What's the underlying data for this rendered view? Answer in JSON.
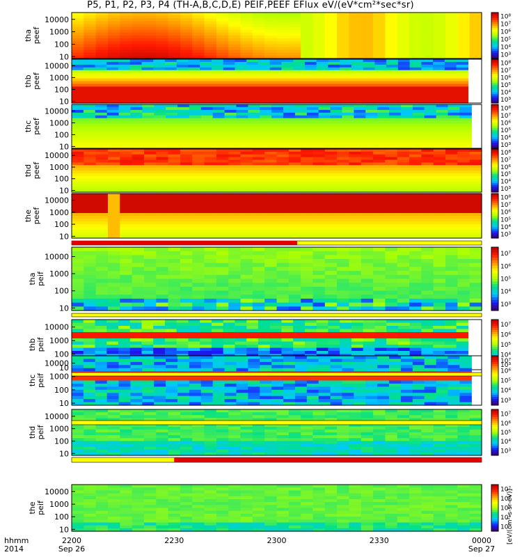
{
  "chart_data": {
    "type": "heatmap",
    "title": "P5, P1, P2, P3, P4 (TH-A,B,C,D,E) PEIF,PEEF EFlux eV/(eV*cm²*sec*sr)",
    "x_axis": {
      "label_rows": [
        "hhmm",
        "2014"
      ],
      "ticks": [
        {
          "t": 0,
          "hhmm": "2200",
          "date": "Sep 26"
        },
        {
          "t": 30,
          "hhmm": "2230",
          "date": ""
        },
        {
          "t": 60,
          "hhmm": "2300",
          "date": ""
        },
        {
          "t": 90,
          "hhmm": "2330",
          "date": ""
        },
        {
          "t": 120,
          "hhmm": "0000",
          "date": "Sep 27"
        }
      ],
      "range_minutes": [
        0,
        120
      ]
    },
    "y_scale": "log",
    "y_ticks": [
      "10",
      "100",
      "1000",
      "10000"
    ],
    "colorbar_unit": "[eV/(cm²-s-sr-eV)]",
    "panels": [
      {
        "ylabel": [
          "tha",
          "peef"
        ],
        "species": "electron",
        "cb_ticks": [
          "10³",
          "10⁴",
          "10⁵",
          "10⁶",
          "10⁷",
          "10⁸"
        ],
        "data_end": 120
      },
      {
        "ylabel": [
          "thb",
          "peef"
        ],
        "species": "electron",
        "cb_ticks": [
          "10³",
          "10⁴",
          "10⁵",
          "10⁶",
          "10⁷",
          "10⁸"
        ],
        "data_end": 116
      },
      {
        "ylabel": [
          "thc",
          "peef"
        ],
        "species": "electron",
        "cb_ticks": [
          "10³",
          "10⁴",
          "10⁵",
          "10⁶",
          "10⁷",
          "10⁸"
        ],
        "data_end": 117
      },
      {
        "ylabel": [
          "thd",
          "peef"
        ],
        "species": "electron",
        "cb_ticks": [
          "10³",
          "10⁴",
          "10⁵",
          "10⁶",
          "10⁷",
          "10⁸"
        ],
        "data_end": 120
      },
      {
        "ylabel": [
          "the",
          "peef"
        ],
        "species": "electron",
        "cb_ticks": [
          "10³",
          "10⁴",
          "10⁵",
          "10⁶",
          "10⁷",
          "10⁸"
        ],
        "data_end": 120
      },
      {
        "ylabel": [
          "tha",
          "peif"
        ],
        "species": "ion",
        "cb_ticks": [
          "10³",
          "10⁴",
          "10⁵",
          "10⁶",
          "10⁷"
        ],
        "data_end": 120
      },
      {
        "ylabel": [
          "thb",
          "peif"
        ],
        "species": "ion",
        "cb_ticks": [
          "10³",
          "10⁴",
          "10⁵",
          "10⁶",
          "10⁷"
        ],
        "data_end": 116
      },
      {
        "ylabel": [
          "thc",
          "peif"
        ],
        "species": "ion",
        "cb_ticks": [
          "10³",
          "10⁴",
          "10⁵",
          "10⁶",
          "10⁷"
        ],
        "data_end": 117
      },
      {
        "ylabel": [
          "thd",
          "peif"
        ],
        "species": "ion",
        "cb_ticks": [
          "10³",
          "10⁴",
          "10⁵",
          "10⁶",
          "10⁷"
        ],
        "data_end": 120
      },
      {
        "ylabel": [
          "the",
          "peif"
        ],
        "species": "ion",
        "cb_ticks": [
          "10³",
          "10⁴",
          "10⁵",
          "10⁶",
          "10⁷"
        ],
        "data_end": 120
      }
    ],
    "grid": false,
    "colormap": [
      "#3a0060",
      "#1a1aff",
      "#00c8ff",
      "#00e08a",
      "#b0ff00",
      "#ffff00",
      "#ff9000",
      "#ff1a00",
      "#b00000"
    ]
  }
}
